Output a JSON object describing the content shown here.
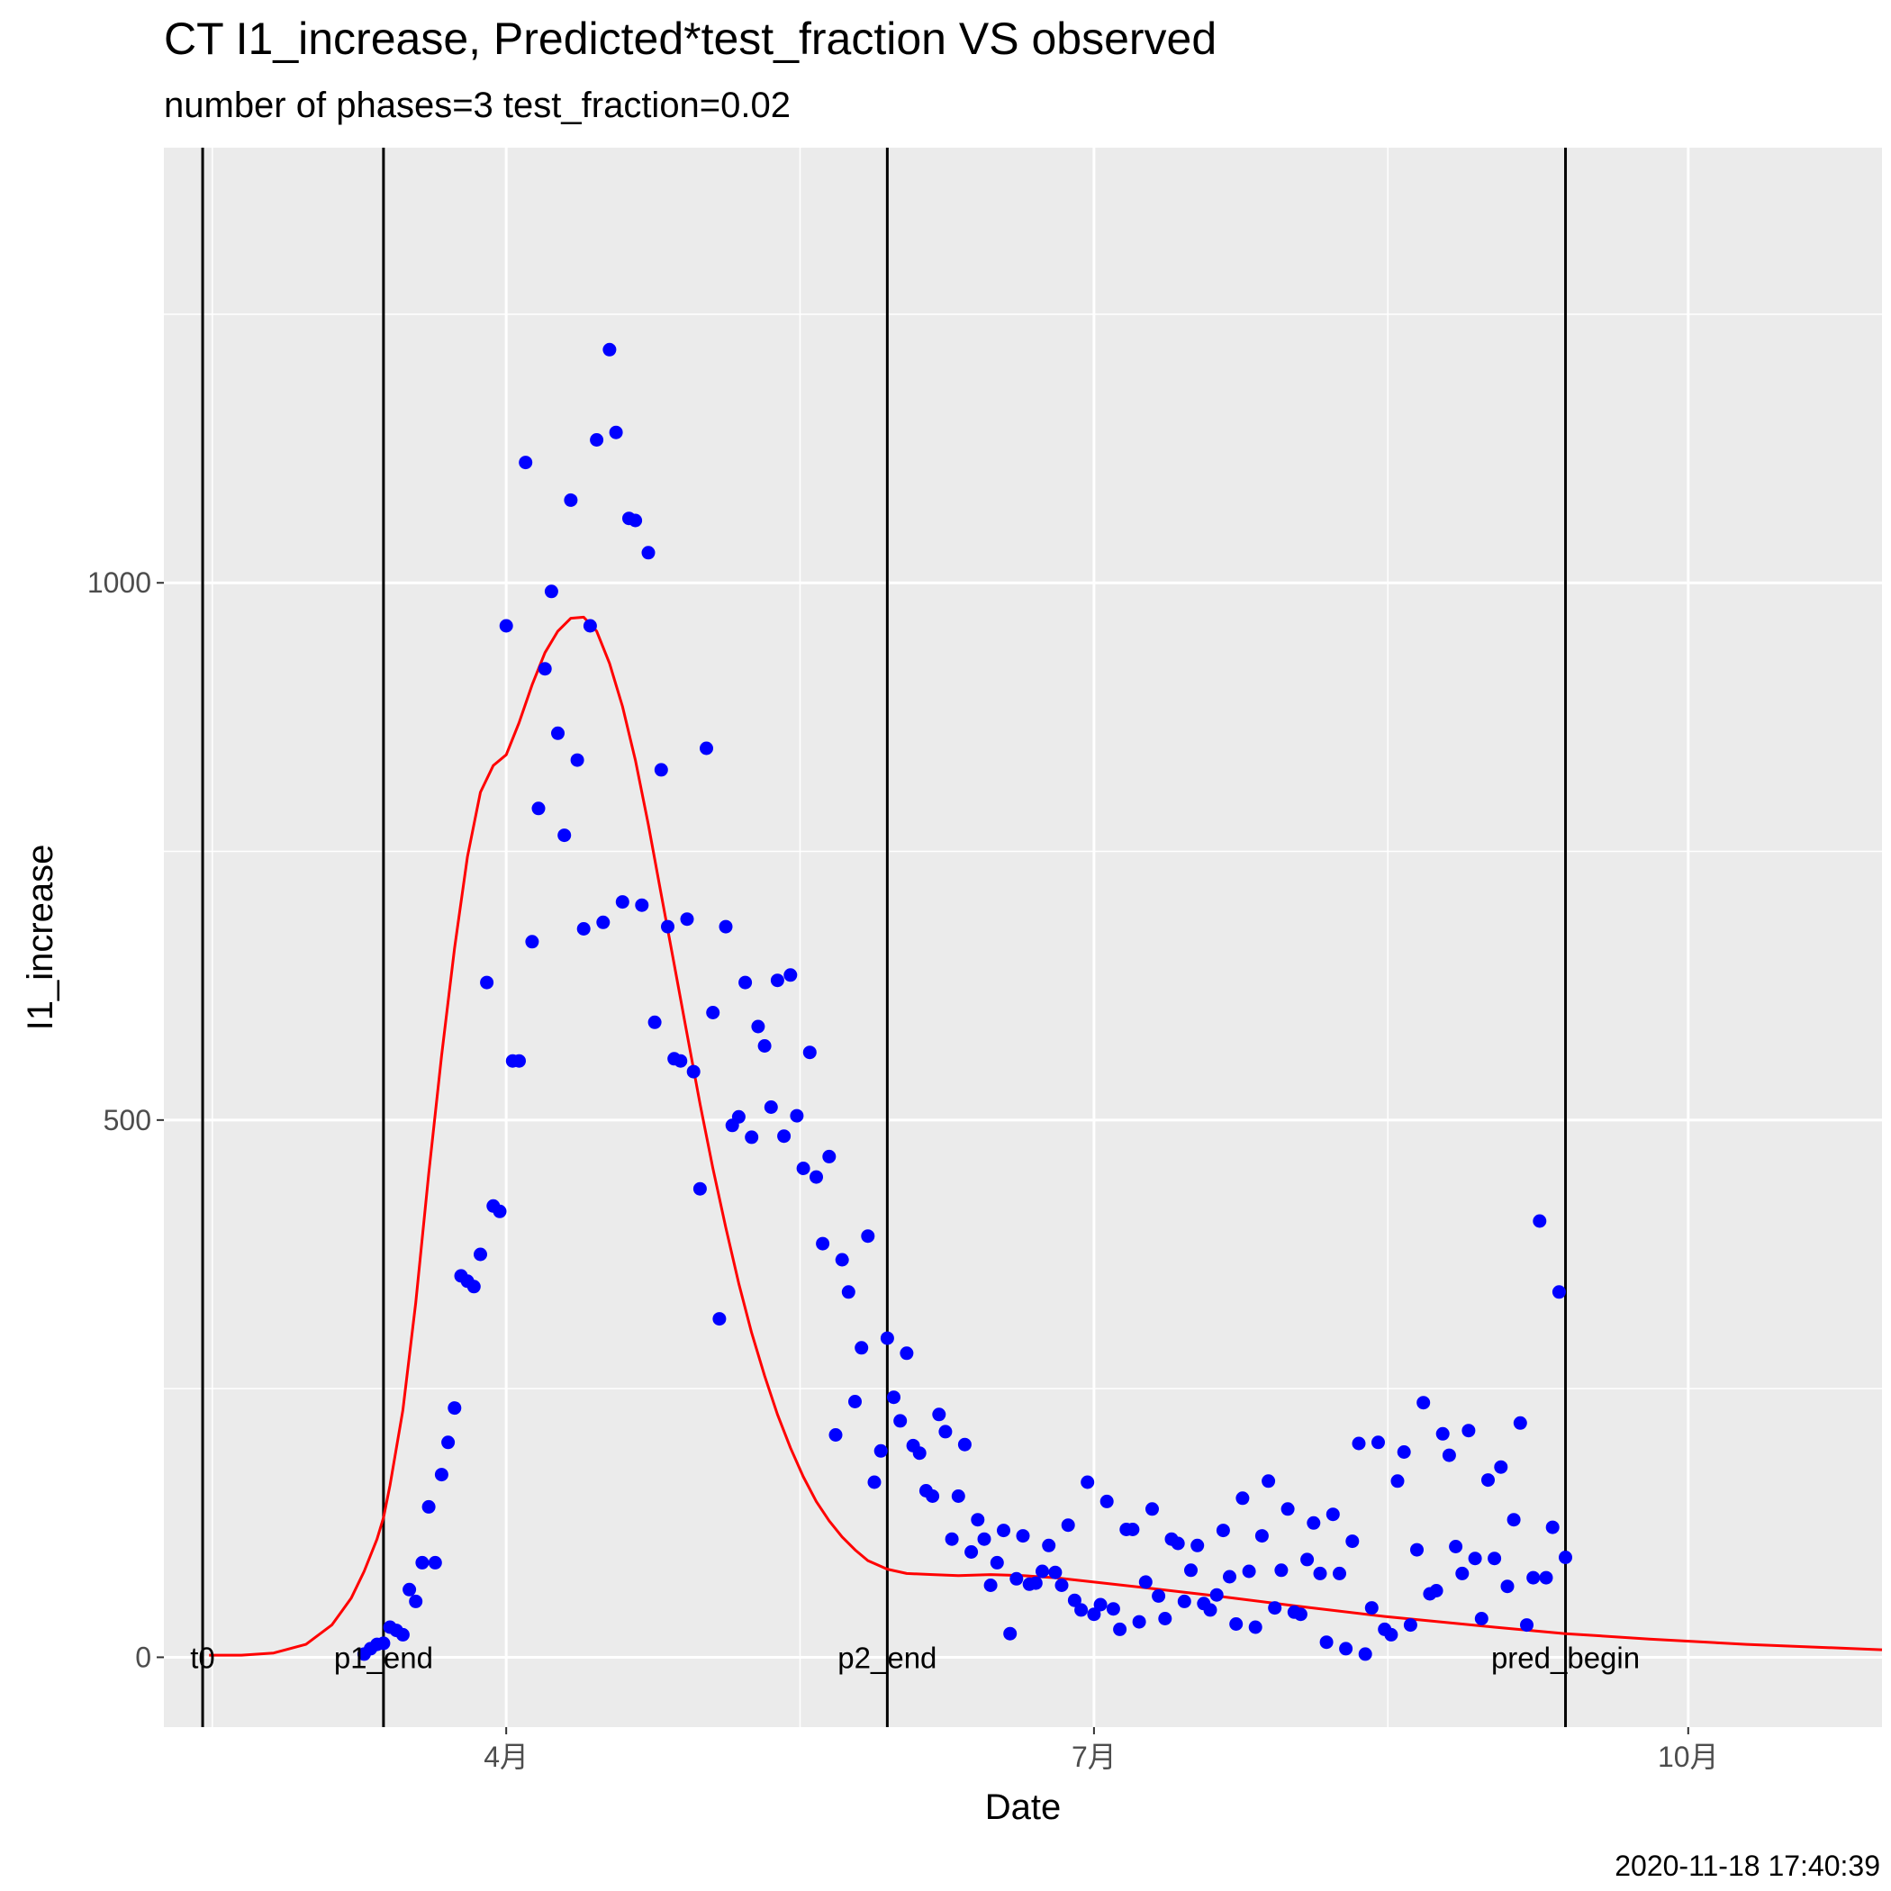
{
  "chart_data": {
    "type": "scatter",
    "title": "CT I1_increase, Predicted*test_fraction VS observed",
    "subtitle": "number of phases=3   test_fraction=0.02",
    "xlabel": "Date",
    "ylabel": "I1_increase",
    "caption": "2020-11-18 17:40:39",
    "xlim": [
      "2020-02-08",
      "2020-10-31"
    ],
    "ylim": [
      -65,
      1405
    ],
    "x_ticks": [
      {
        "date": "2020-04-01",
        "label": "4月"
      },
      {
        "date": "2020-07-01",
        "label": "7月"
      },
      {
        "date": "2020-10-01",
        "label": "10月"
      }
    ],
    "y_ticks": [
      0,
      500,
      1000
    ],
    "grid": true,
    "colors": {
      "panel": "#ebebeb",
      "grid": "#ffffff",
      "observed": "#0000ff",
      "predicted": "#ff0000",
      "vline": "#000000"
    },
    "vlines": [
      {
        "date": "2020-02-14",
        "label": "t0"
      },
      {
        "date": "2020-03-13",
        "label": "p1_end"
      },
      {
        "date": "2020-05-30",
        "label": "p2_end"
      },
      {
        "date": "2020-09-12",
        "label": "pred_begin"
      }
    ],
    "series": [
      {
        "kind": "points",
        "points": [
          [
            "2020-03-10",
            3
          ],
          [
            "2020-03-11",
            8
          ],
          [
            "2020-03-12",
            12
          ],
          [
            "2020-03-13",
            13
          ],
          [
            "2020-03-14",
            28
          ],
          [
            "2020-03-15",
            25
          ],
          [
            "2020-03-16",
            21
          ],
          [
            "2020-03-17",
            63
          ],
          [
            "2020-03-18",
            52
          ],
          [
            "2020-03-19",
            88
          ],
          [
            "2020-03-20",
            140
          ],
          [
            "2020-03-21",
            88
          ],
          [
            "2020-03-22",
            170
          ],
          [
            "2020-03-23",
            200
          ],
          [
            "2020-03-24",
            232
          ],
          [
            "2020-03-25",
            355
          ],
          [
            "2020-03-26",
            350
          ],
          [
            "2020-03-27",
            345
          ],
          [
            "2020-03-28",
            375
          ],
          [
            "2020-03-29",
            628
          ],
          [
            "2020-03-30",
            420
          ],
          [
            "2020-03-31",
            415
          ],
          [
            "2020-04-01",
            960
          ],
          [
            "2020-04-02",
            555
          ],
          [
            "2020-04-03",
            555
          ],
          [
            "2020-04-04",
            1112
          ],
          [
            "2020-04-05",
            666
          ],
          [
            "2020-04-06",
            790
          ],
          [
            "2020-04-07",
            920
          ],
          [
            "2020-04-08",
            992
          ],
          [
            "2020-04-09",
            860
          ],
          [
            "2020-04-10",
            765
          ],
          [
            "2020-04-11",
            1077
          ],
          [
            "2020-04-12",
            835
          ],
          [
            "2020-04-13",
            678
          ],
          [
            "2020-04-14",
            960
          ],
          [
            "2020-04-15",
            1133
          ],
          [
            "2020-04-16",
            684
          ],
          [
            "2020-04-17",
            1217
          ],
          [
            "2020-04-18",
            1140
          ],
          [
            "2020-04-19",
            703
          ],
          [
            "2020-04-20",
            1060
          ],
          [
            "2020-04-21",
            1058
          ],
          [
            "2020-04-22",
            700
          ],
          [
            "2020-04-23",
            1028
          ],
          [
            "2020-04-24",
            591
          ],
          [
            "2020-04-25",
            826
          ],
          [
            "2020-04-26",
            680
          ],
          [
            "2020-04-27",
            557
          ],
          [
            "2020-04-28",
            555
          ],
          [
            "2020-04-29",
            687
          ],
          [
            "2020-04-30",
            545
          ],
          [
            "2020-05-01",
            436
          ],
          [
            "2020-05-02",
            846
          ],
          [
            "2020-05-03",
            600
          ],
          [
            "2020-05-04",
            315
          ],
          [
            "2020-05-05",
            680
          ],
          [
            "2020-05-06",
            495
          ],
          [
            "2020-05-07",
            503
          ],
          [
            "2020-05-08",
            628
          ],
          [
            "2020-05-09",
            484
          ],
          [
            "2020-05-10",
            587
          ],
          [
            "2020-05-11",
            569
          ],
          [
            "2020-05-12",
            512
          ],
          [
            "2020-05-13",
            630
          ],
          [
            "2020-05-14",
            485
          ],
          [
            "2020-05-15",
            635
          ],
          [
            "2020-05-16",
            504
          ],
          [
            "2020-05-17",
            455
          ],
          [
            "2020-05-18",
            563
          ],
          [
            "2020-05-19",
            447
          ],
          [
            "2020-05-20",
            385
          ],
          [
            "2020-05-21",
            466
          ],
          [
            "2020-05-22",
            207
          ],
          [
            "2020-05-23",
            370
          ],
          [
            "2020-05-24",
            340
          ],
          [
            "2020-05-25",
            238
          ],
          [
            "2020-05-26",
            288
          ],
          [
            "2020-05-27",
            392
          ],
          [
            "2020-05-28",
            163
          ],
          [
            "2020-05-29",
            192
          ],
          [
            "2020-05-30",
            297
          ],
          [
            "2020-05-31",
            242
          ],
          [
            "2020-06-01",
            220
          ],
          [
            "2020-06-02",
            283
          ],
          [
            "2020-06-03",
            197
          ],
          [
            "2020-06-04",
            190
          ],
          [
            "2020-06-05",
            155
          ],
          [
            "2020-06-06",
            150
          ],
          [
            "2020-06-07",
            226
          ],
          [
            "2020-06-08",
            210
          ],
          [
            "2020-06-09",
            110
          ],
          [
            "2020-06-10",
            150
          ],
          [
            "2020-06-11",
            198
          ],
          [
            "2020-06-12",
            98
          ],
          [
            "2020-06-13",
            128
          ],
          [
            "2020-06-14",
            110
          ],
          [
            "2020-06-15",
            67
          ],
          [
            "2020-06-16",
            88
          ],
          [
            "2020-06-17",
            118
          ],
          [
            "2020-06-18",
            22
          ],
          [
            "2020-06-19",
            73
          ],
          [
            "2020-06-20",
            113
          ],
          [
            "2020-06-21",
            68
          ],
          [
            "2020-06-22",
            69
          ],
          [
            "2020-06-23",
            80
          ],
          [
            "2020-06-24",
            104
          ],
          [
            "2020-06-25",
            79
          ],
          [
            "2020-06-26",
            67
          ],
          [
            "2020-06-27",
            123
          ],
          [
            "2020-06-28",
            53
          ],
          [
            "2020-06-29",
            44
          ],
          [
            "2020-06-30",
            163
          ],
          [
            "2020-07-01",
            40
          ],
          [
            "2020-07-02",
            49
          ],
          [
            "2020-07-03",
            145
          ],
          [
            "2020-07-04",
            45
          ],
          [
            "2020-07-05",
            26
          ],
          [
            "2020-07-06",
            119
          ],
          [
            "2020-07-07",
            119
          ],
          [
            "2020-07-08",
            33
          ],
          [
            "2020-07-09",
            70
          ],
          [
            "2020-07-10",
            138
          ],
          [
            "2020-07-11",
            57
          ],
          [
            "2020-07-12",
            36
          ],
          [
            "2020-07-13",
            110
          ],
          [
            "2020-07-14",
            106
          ],
          [
            "2020-07-15",
            52
          ],
          [
            "2020-07-16",
            81
          ],
          [
            "2020-07-17",
            104
          ],
          [
            "2020-07-18",
            50
          ],
          [
            "2020-07-19",
            44
          ],
          [
            "2020-07-20",
            58
          ],
          [
            "2020-07-21",
            118
          ],
          [
            "2020-07-22",
            75
          ],
          [
            "2020-07-23",
            31
          ],
          [
            "2020-07-24",
            148
          ],
          [
            "2020-07-25",
            80
          ],
          [
            "2020-07-26",
            28
          ],
          [
            "2020-07-27",
            113
          ],
          [
            "2020-07-28",
            164
          ],
          [
            "2020-07-29",
            46
          ],
          [
            "2020-07-30",
            81
          ],
          [
            "2020-07-31",
            138
          ],
          [
            "2020-08-01",
            42
          ],
          [
            "2020-08-02",
            40
          ],
          [
            "2020-08-03",
            91
          ],
          [
            "2020-08-04",
            125
          ],
          [
            "2020-08-05",
            78
          ],
          [
            "2020-08-06",
            14
          ],
          [
            "2020-08-07",
            133
          ],
          [
            "2020-08-08",
            78
          ],
          [
            "2020-08-09",
            8
          ],
          [
            "2020-08-10",
            108
          ],
          [
            "2020-08-11",
            199
          ],
          [
            "2020-08-12",
            3
          ],
          [
            "2020-08-13",
            46
          ],
          [
            "2020-08-14",
            200
          ],
          [
            "2020-08-15",
            26
          ],
          [
            "2020-08-16",
            21
          ],
          [
            "2020-08-17",
            164
          ],
          [
            "2020-08-18",
            191
          ],
          [
            "2020-08-19",
            30
          ],
          [
            "2020-08-20",
            100
          ],
          [
            "2020-08-21",
            237
          ],
          [
            "2020-08-22",
            59
          ],
          [
            "2020-08-23",
            62
          ],
          [
            "2020-08-24",
            208
          ],
          [
            "2020-08-25",
            188
          ],
          [
            "2020-08-26",
            103
          ],
          [
            "2020-08-27",
            78
          ],
          [
            "2020-08-28",
            211
          ],
          [
            "2020-08-29",
            92
          ],
          [
            "2020-08-30",
            36
          ],
          [
            "2020-08-31",
            165
          ],
          [
            "2020-09-01",
            92
          ],
          [
            "2020-09-02",
            177
          ],
          [
            "2020-09-03",
            66
          ],
          [
            "2020-09-04",
            128
          ],
          [
            "2020-09-05",
            218
          ],
          [
            "2020-09-06",
            30
          ],
          [
            "2020-09-07",
            74
          ],
          [
            "2020-09-08",
            406
          ],
          [
            "2020-09-09",
            74
          ],
          [
            "2020-09-10",
            121
          ],
          [
            "2020-09-11",
            340
          ],
          [
            "2020-09-12",
            93
          ]
        ]
      },
      {
        "kind": "line",
        "points": [
          [
            "2020-02-15",
            2
          ],
          [
            "2020-02-20",
            2
          ],
          [
            "2020-02-25",
            4
          ],
          [
            "2020-03-01",
            12
          ],
          [
            "2020-03-05",
            30
          ],
          [
            "2020-03-08",
            55
          ],
          [
            "2020-03-10",
            80
          ],
          [
            "2020-03-12",
            110
          ],
          [
            "2020-03-13",
            130
          ],
          [
            "2020-03-14",
            160
          ],
          [
            "2020-03-16",
            230
          ],
          [
            "2020-03-18",
            330
          ],
          [
            "2020-03-20",
            450
          ],
          [
            "2020-03-22",
            560
          ],
          [
            "2020-03-24",
            660
          ],
          [
            "2020-03-26",
            745
          ],
          [
            "2020-03-28",
            805
          ],
          [
            "2020-03-30",
            830
          ],
          [
            "2020-04-01",
            840
          ],
          [
            "2020-04-03",
            870
          ],
          [
            "2020-04-05",
            905
          ],
          [
            "2020-04-07",
            935
          ],
          [
            "2020-04-09",
            955
          ],
          [
            "2020-04-11",
            967
          ],
          [
            "2020-04-13",
            968
          ],
          [
            "2020-04-15",
            955
          ],
          [
            "2020-04-17",
            925
          ],
          [
            "2020-04-19",
            885
          ],
          [
            "2020-04-21",
            835
          ],
          [
            "2020-04-23",
            775
          ],
          [
            "2020-04-25",
            710
          ],
          [
            "2020-04-27",
            645
          ],
          [
            "2020-04-29",
            580
          ],
          [
            "2020-05-01",
            515
          ],
          [
            "2020-05-03",
            455
          ],
          [
            "2020-05-05",
            400
          ],
          [
            "2020-05-07",
            348
          ],
          [
            "2020-05-09",
            302
          ],
          [
            "2020-05-11",
            262
          ],
          [
            "2020-05-13",
            226
          ],
          [
            "2020-05-15",
            195
          ],
          [
            "2020-05-17",
            168
          ],
          [
            "2020-05-19",
            145
          ],
          [
            "2020-05-21",
            127
          ],
          [
            "2020-05-23",
            112
          ],
          [
            "2020-05-25",
            100
          ],
          [
            "2020-05-27",
            90
          ],
          [
            "2020-05-30",
            82
          ],
          [
            "2020-06-02",
            78
          ],
          [
            "2020-06-06",
            77
          ],
          [
            "2020-06-10",
            76
          ],
          [
            "2020-06-15",
            77
          ],
          [
            "2020-06-20",
            76
          ],
          [
            "2020-06-25",
            74
          ],
          [
            "2020-07-01",
            70
          ],
          [
            "2020-07-10",
            64
          ],
          [
            "2020-07-20",
            57
          ],
          [
            "2020-08-01",
            48
          ],
          [
            "2020-08-15",
            38
          ],
          [
            "2020-09-01",
            28
          ],
          [
            "2020-09-12",
            22
          ],
          [
            "2020-09-25",
            17
          ],
          [
            "2020-10-10",
            12
          ],
          [
            "2020-10-31",
            7
          ]
        ]
      }
    ]
  }
}
